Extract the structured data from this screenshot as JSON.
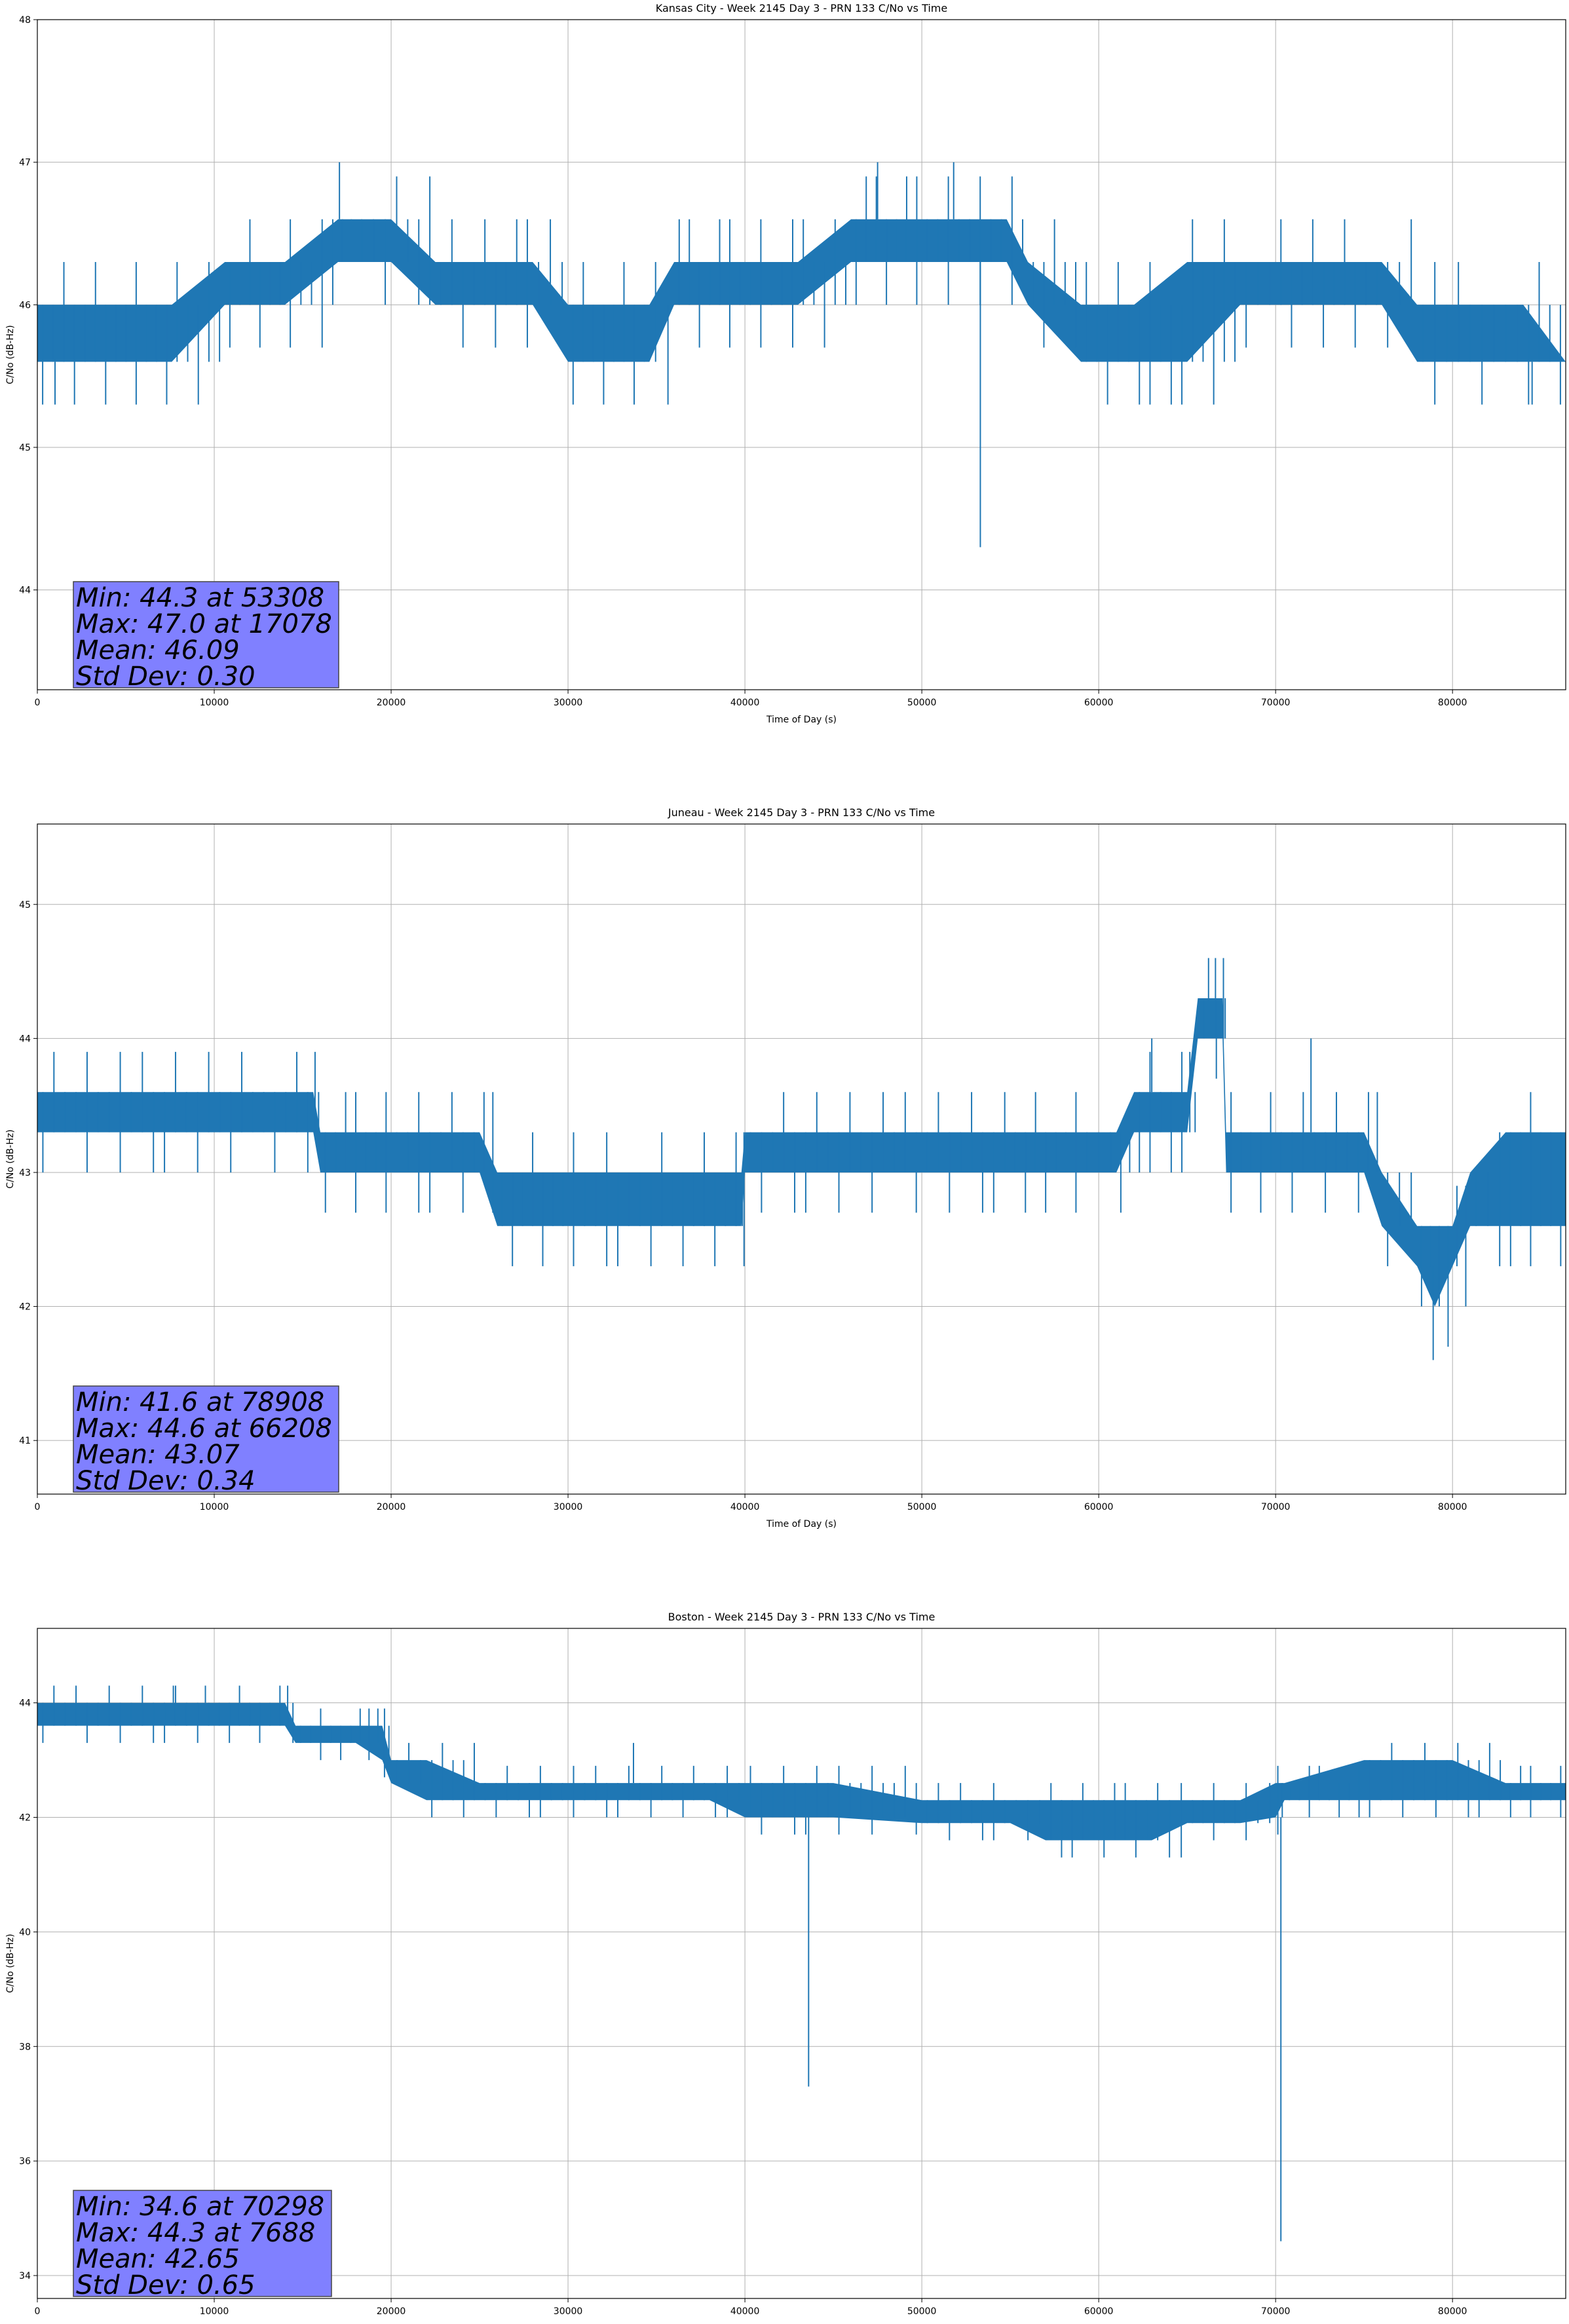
{
  "chart_data": [
    {
      "type": "line",
      "title": "Kansas City - Week 2145 Day 3 - PRN 133 C/No vs Time",
      "xlabel": "Time of Day (s)",
      "ylabel": "C/No (dB-Hz)",
      "xlim": [
        0,
        86400
      ],
      "ylim": [
        43.3,
        48.0
      ],
      "xticks": [
        0,
        10000,
        20000,
        30000,
        40000,
        50000,
        60000,
        70000,
        80000
      ],
      "yticks": [
        44,
        45,
        46,
        47,
        48
      ],
      "grid": true,
      "series": [
        {
          "color": "#1f77b4",
          "x": [
            0,
            3000,
            7600,
            10600,
            14000,
            17000,
            18000,
            20000,
            22500,
            25000,
            28000,
            30000,
            34600,
            36000,
            40000,
            43000,
            46000,
            50000,
            54800,
            56000,
            59000,
            62000,
            65000,
            68000,
            70000,
            73000,
            76000,
            78000,
            80000,
            82000,
            84000,
            86400
          ],
          "low": [
            45.6,
            45.6,
            45.6,
            46.0,
            46.0,
            46.3,
            46.3,
            46.3,
            46.0,
            46.0,
            46.0,
            45.6,
            45.6,
            46.0,
            46.0,
            46.0,
            46.3,
            46.3,
            46.3,
            46.0,
            45.6,
            45.6,
            45.6,
            46.0,
            46.0,
            46.0,
            46.0,
            45.6,
            45.6,
            45.6,
            45.6,
            45.6
          ],
          "high": [
            46.0,
            46.0,
            46.0,
            46.3,
            46.3,
            46.6,
            46.6,
            46.6,
            46.3,
            46.3,
            46.3,
            46.0,
            46.0,
            46.3,
            46.3,
            46.3,
            46.6,
            46.6,
            46.6,
            46.3,
            46.0,
            46.0,
            46.3,
            46.3,
            46.3,
            46.3,
            46.3,
            46.0,
            46.0,
            46.0,
            46.0,
            45.6
          ]
        }
      ],
      "spikes": [
        {
          "x": 53308,
          "y": 44.3
        },
        {
          "x": 17078,
          "y": 47.0
        },
        {
          "x": 47500,
          "y": 47.0
        },
        {
          "x": 51800,
          "y": 47.0
        },
        {
          "x": 84500,
          "y": 45.3
        },
        {
          "x": 1000,
          "y": 45.3
        }
      ],
      "stats": [
        "Min: 44.3 at 53308",
        "Max: 47.0 at 17078",
        "Mean: 46.09",
        "Std Dev: 0.30"
      ]
    },
    {
      "type": "line",
      "title": "Juneau - Week 2145 Day 3 - PRN 133 C/No vs Time",
      "xlabel": "Time of Day (s)",
      "ylabel": "C/No (dB-Hz)",
      "xlim": [
        0,
        86400
      ],
      "ylim": [
        40.6,
        45.6
      ],
      "xticks": [
        0,
        10000,
        20000,
        30000,
        40000,
        50000,
        60000,
        70000,
        80000
      ],
      "yticks": [
        41,
        42,
        43,
        44,
        45
      ],
      "grid": true,
      "series": [
        {
          "color": "#1f77b4",
          "x": [
            0,
            5000,
            10000,
            15600,
            16000,
            20000,
            25000,
            26000,
            30000,
            35000,
            39800,
            40000,
            45000,
            50000,
            55000,
            59000,
            61000,
            62000,
            65000,
            65600,
            67000,
            67200,
            70000,
            75000,
            76000,
            78000,
            79000,
            80000,
            81000,
            83000,
            86400
          ],
          "low": [
            43.3,
            43.3,
            43.3,
            43.3,
            43.0,
            43.0,
            43.0,
            42.6,
            42.6,
            42.6,
            42.6,
            43.0,
            43.0,
            43.0,
            43.0,
            43.0,
            43.0,
            43.3,
            43.3,
            44.0,
            44.0,
            43.0,
            43.0,
            43.0,
            42.6,
            42.3,
            42.0,
            42.3,
            42.6,
            42.6,
            42.6
          ],
          "high": [
            43.6,
            43.6,
            43.6,
            43.6,
            43.3,
            43.3,
            43.3,
            43.0,
            43.0,
            43.0,
            43.0,
            43.3,
            43.3,
            43.3,
            43.3,
            43.3,
            43.3,
            43.6,
            43.6,
            44.3,
            44.3,
            43.3,
            43.3,
            43.3,
            43.0,
            42.6,
            42.6,
            42.6,
            43.0,
            43.3,
            43.3
          ]
        }
      ],
      "spikes": [
        {
          "x": 78908,
          "y": 41.6
        },
        {
          "x": 66208,
          "y": 44.6
        },
        {
          "x": 66600,
          "y": 44.6
        },
        {
          "x": 72000,
          "y": 44.0
        },
        {
          "x": 63000,
          "y": 44.0
        }
      ],
      "stats": [
        "Min: 41.6 at 78908",
        "Max: 44.6 at 66208",
        "Mean: 43.07",
        "Std Dev: 0.34"
      ]
    },
    {
      "type": "line",
      "title": "Boston - Week 2145 Day 3 - PRN 133 C/No vs Time",
      "xlabel": "Time of Day (s)",
      "ylabel": "C/No (dB-Hz)",
      "xlim": [
        0,
        86400
      ],
      "ylim": [
        33.6,
        45.3
      ],
      "xticks": [
        0,
        10000,
        20000,
        30000,
        40000,
        50000,
        60000,
        70000,
        80000
      ],
      "yticks": [
        34,
        36,
        38,
        40,
        42,
        44
      ],
      "grid": true,
      "series": [
        {
          "color": "#1f77b4",
          "x": [
            0,
            5000,
            10000,
            14000,
            14600,
            18000,
            19500,
            20000,
            22000,
            25000,
            30000,
            35000,
            38000,
            40000,
            45000,
            50000,
            55000,
            57000,
            60000,
            63000,
            65000,
            68000,
            70000,
            70500,
            75000,
            80000,
            83000,
            86400
          ],
          "low": [
            43.6,
            43.6,
            43.6,
            43.6,
            43.3,
            43.3,
            43.0,
            42.6,
            42.3,
            42.3,
            42.3,
            42.3,
            42.3,
            42.0,
            42.0,
            41.9,
            41.9,
            41.6,
            41.6,
            41.6,
            41.9,
            41.9,
            42.0,
            42.3,
            42.3,
            42.3,
            42.3,
            42.3
          ],
          "high": [
            44.0,
            44.0,
            44.0,
            44.0,
            43.6,
            43.6,
            43.6,
            43.0,
            43.0,
            42.6,
            42.6,
            42.6,
            42.6,
            42.6,
            42.6,
            42.3,
            42.3,
            42.3,
            42.3,
            42.3,
            42.3,
            42.3,
            42.6,
            42.6,
            43.0,
            43.0,
            42.6,
            42.6
          ]
        }
      ],
      "spikes": [
        {
          "x": 70298,
          "y": 34.6
        },
        {
          "x": 43600,
          "y": 37.3
        },
        {
          "x": 7688,
          "y": 44.3
        },
        {
          "x": 9500,
          "y": 44.3
        },
        {
          "x": 33700,
          "y": 43.3
        }
      ],
      "stats": [
        "Min: 34.6 at 70298",
        "Max: 44.3 at 7688",
        "Mean: 42.65",
        "Std Dev: 0.65"
      ]
    }
  ]
}
